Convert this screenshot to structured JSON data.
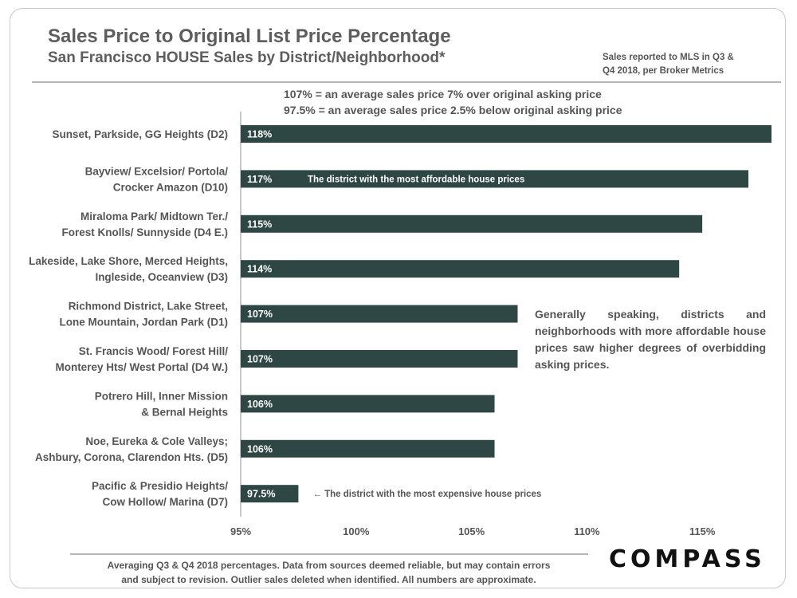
{
  "header": {
    "title": "Sales Price to Original List Price Percentage",
    "subtitle": "San Francisco HOUSE Sales by District/Neighborhood*",
    "source_line1": "Sales reported to MLS in Q3 &",
    "source_line2": "Q4 2018, per Broker Metrics"
  },
  "notes": {
    "line1": "107% = an average sales price 7% over original asking price",
    "line2": "97.5% = an average sales price 2.5% below original asking price"
  },
  "commentary": "Generally speaking, districts and neighborhoods with more affordable house prices saw higher degrees of overbidding asking prices.",
  "footer": {
    "line1": "Averaging Q3 & Q4 2018 percentages. Data from sources deemed reliable, but may contain errors",
    "line2": "and subject to revision. Outlier sales deleted  when identified. All numbers are approximate."
  },
  "brand": {
    "logo_text": "COMPASS"
  },
  "colors": {
    "bar": "#2e4744",
    "text": "#555555",
    "axis": "#b5b5b5"
  },
  "chart_data": {
    "type": "bar",
    "orientation": "horizontal",
    "categories": [
      [
        "Sunset, Parkside, GG Heights (D2)"
      ],
      [
        "Bayview/ Excelsior/ Portola/",
        "Crocker Amazon (D10)"
      ],
      [
        "Miraloma Park/ Midtown Ter./",
        "Forest Knolls/ Sunnyside (D4 E.)"
      ],
      [
        "Lakeside, Lake Shore, Merced Heights,",
        "Ingleside, Oceanview (D3)"
      ],
      [
        "Richmond District, Lake Street,",
        "Lone Mountain, Jordan Park (D1)"
      ],
      [
        "St. Francis Wood/ Forest Hill/",
        "Monterey Hts/ West Portal (D4 W.)"
      ],
      [
        "Potrero Hill, Inner Mission",
        "& Bernal Heights"
      ],
      [
        "Noe, Eureka & Cole Valleys;",
        "Ashbury, Corona, Clarendon Hts. (D5)"
      ],
      [
        "Pacific & Presidio Heights/",
        "Cow Hollow/ Marina (D7)"
      ]
    ],
    "values": [
      118,
      117,
      115,
      114,
      107,
      107,
      106,
      106,
      97.5
    ],
    "value_labels": [
      "118%",
      "117%",
      "115%",
      "114%",
      "107%",
      "107%",
      "106%",
      "106%",
      "97.5%"
    ],
    "xlim": [
      95,
      118
    ],
    "xticks": [
      95,
      100,
      105,
      110,
      115
    ],
    "xtick_labels": [
      "95%",
      "100%",
      "105%",
      "110%",
      "115%"
    ],
    "annotations": [
      {
        "category_index": 1,
        "text": "The district with the most affordable house prices",
        "placement": "inside-bar"
      },
      {
        "category_index": 8,
        "text": "← The district with the most expensive house prices",
        "placement": "outside-bar"
      }
    ],
    "grid": false,
    "legend": "none"
  }
}
